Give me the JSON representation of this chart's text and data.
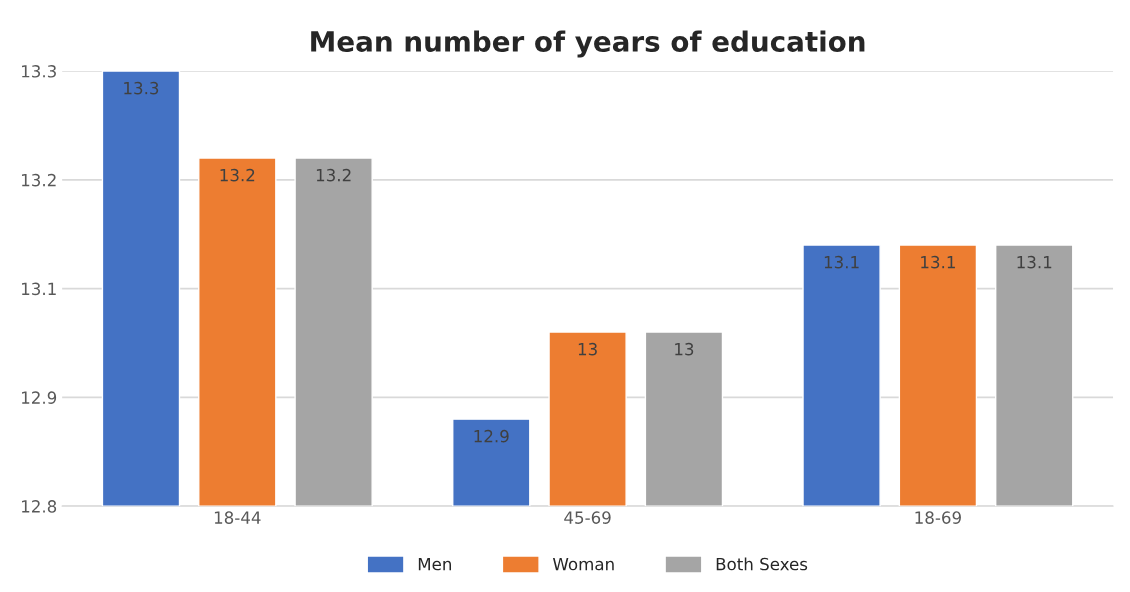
{
  "chart_data": {
    "type": "bar",
    "title": "Mean number of years of education",
    "categories": [
      "18-44",
      "45-69",
      "18-69"
    ],
    "series": [
      {
        "name": "Men",
        "color": "#4472c4",
        "values": [
          13.3,
          12.9,
          13.1
        ]
      },
      {
        "name": "Woman",
        "color": "#ed7d31",
        "values": [
          13.2,
          13.0,
          13.1
        ]
      },
      {
        "name": "Both Sexes",
        "color": "#a5a5a5",
        "values": [
          13.2,
          13.0,
          13.1
        ]
      }
    ],
    "ylim": [
      12.8,
      13.3
    ],
    "yticks": [
      12.8,
      {
        "value": 12.925,
        "label": "12.9"
      },
      {
        "value": 13.05,
        "label": "13.1"
      },
      {
        "value": 13.175,
        "label": "13.2"
      },
      13.3
    ],
    "grid": "y",
    "legend": "bottom",
    "data_labels": true
  }
}
